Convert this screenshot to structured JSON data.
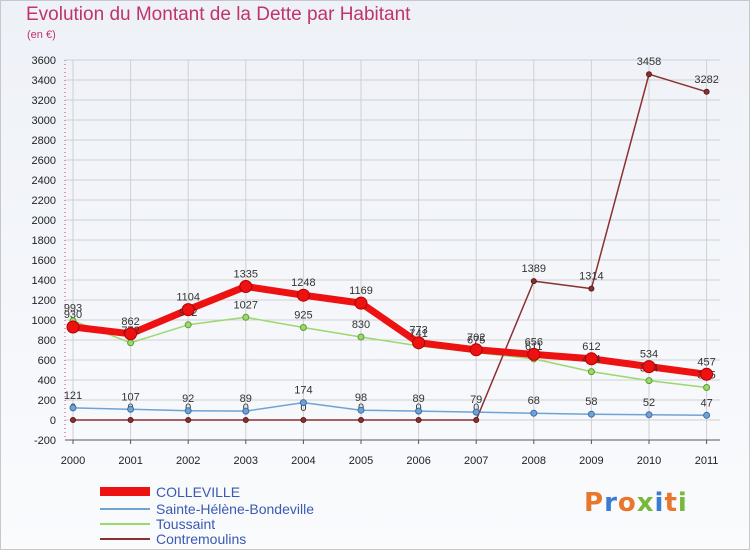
{
  "title": "Evolution du Montant de la Dette par Habitant",
  "subtitle": "(en €)",
  "logo": {
    "text": "Proxiti",
    "colors": [
      "#e8762c",
      "#3a7bd5",
      "#e8762c",
      "#78b83a",
      "#3a7bd5",
      "#e8762c",
      "#78b83a"
    ]
  },
  "chart_data": {
    "type": "line",
    "x": [
      "2000",
      "2001",
      "2002",
      "2003",
      "2004",
      "2005",
      "2006",
      "2007",
      "2008",
      "2009",
      "2010",
      "2011"
    ],
    "ylim": [
      -200,
      3600
    ],
    "yticks": [
      -200,
      0,
      200,
      400,
      600,
      800,
      1000,
      1200,
      1400,
      1600,
      1800,
      2000,
      2200,
      2400,
      2600,
      2800,
      3000,
      3200,
      3400,
      3600
    ],
    "grid": true,
    "legend_position": "bottom-left",
    "series": [
      {
        "name": "COLLEVILLE",
        "color": "#ee1111",
        "values": [
          930,
          862,
          1104,
          1335,
          1248,
          1169,
          773,
          702,
          656,
          612,
          534,
          457
        ],
        "labels": [
          "930",
          "862",
          "1104",
          "1335",
          "1248",
          "1169",
          "773",
          "702",
          "656",
          "612",
          "534",
          "457"
        ]
      },
      {
        "name": "Sainte-Hélène-Bondeville",
        "color": "#6fa3d4",
        "values": [
          121,
          107,
          92,
          89,
          174,
          98,
          89,
          79,
          68,
          58,
          52,
          47
        ],
        "labels": [
          "121",
          "107",
          "92",
          "89",
          "174",
          "98",
          "89",
          "79",
          "68",
          "58",
          "52",
          "47"
        ]
      },
      {
        "name": "Toussaint",
        "color": "#9cd86e",
        "values": [
          993,
          772,
          952,
          1027,
          925,
          830,
          741,
          675,
          611,
          484,
          394,
          325
        ],
        "labels": [
          "993",
          "772",
          "952",
          "1027",
          "925",
          "830",
          "741",
          "675",
          "611",
          "484",
          "394",
          "325"
        ]
      },
      {
        "name": "Contremoulins",
        "color": "#8b3030",
        "values": [
          0,
          0,
          0,
          0,
          0,
          0,
          0,
          0,
          1389,
          1314,
          3458,
          3282
        ],
        "labels": [
          "0",
          "0",
          "0",
          "0",
          "0",
          "0",
          "0",
          "0",
          "1389",
          "1314",
          "3458",
          "3282"
        ]
      }
    ]
  }
}
